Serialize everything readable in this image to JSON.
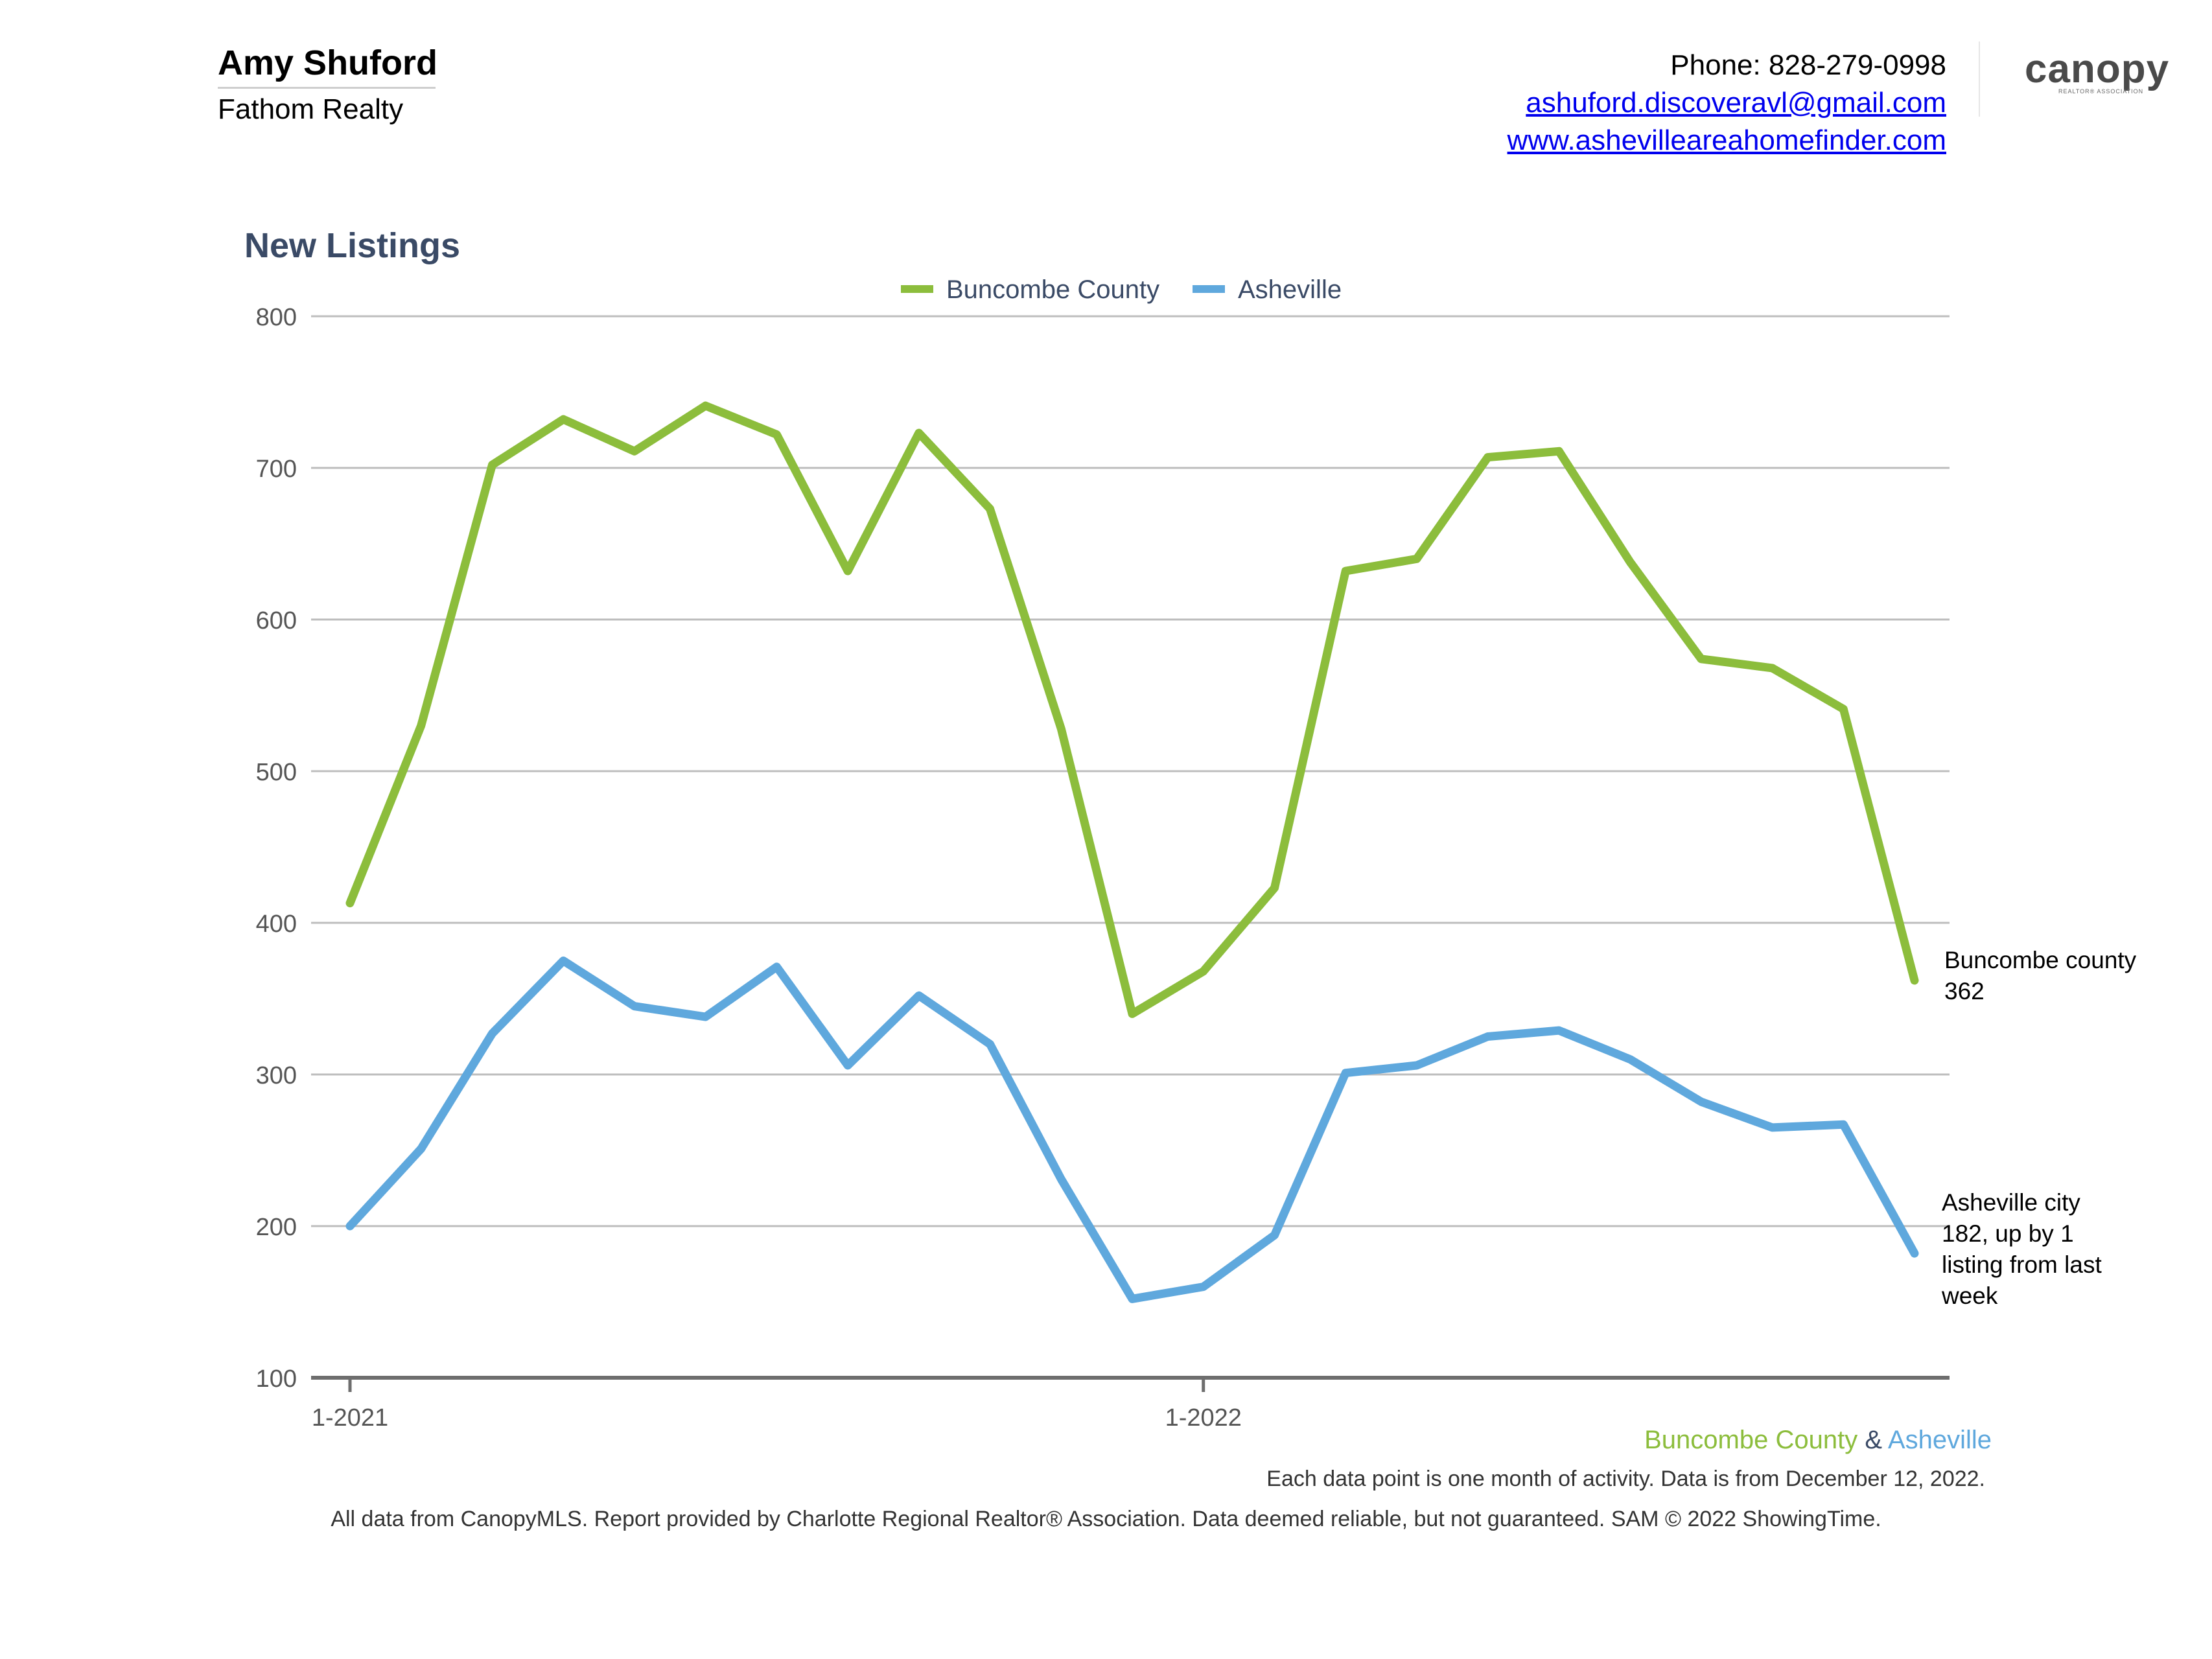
{
  "header": {
    "agent_name": "Amy Shuford",
    "company": "Fathom Realty",
    "phone": "Phone: 828-279-0998",
    "email": "ashuford.discoveravl@gmail.com",
    "website": "www.ashevilleareahomefinder.com",
    "logo_text": "canopy",
    "logo_subtext": "REALTOR® ASSOCIATION"
  },
  "chart_data": {
    "type": "line",
    "title": "New Listings",
    "x": [
      "1-2021",
      "2-2021",
      "3-2021",
      "4-2021",
      "5-2021",
      "6-2021",
      "7-2021",
      "8-2021",
      "9-2021",
      "10-2021",
      "11-2021",
      "12-2021",
      "1-2022",
      "2-2022",
      "3-2022",
      "4-2022",
      "5-2022",
      "6-2022",
      "7-2022",
      "8-2022",
      "9-2022",
      "10-2022",
      "11-2022"
    ],
    "x_tick_labels": [
      "1-2021",
      "1-2022"
    ],
    "y_ticks": [
      100,
      200,
      300,
      400,
      500,
      600,
      700,
      800
    ],
    "ylim": [
      100,
      800
    ],
    "grid": true,
    "legend_position": "top-center",
    "series": [
      {
        "name": "Buncombe County",
        "color": "#8cbd3c",
        "values": [
          413,
          530,
          702,
          732,
          711,
          741,
          722,
          632,
          723,
          673,
          528,
          340,
          368,
          423,
          632,
          640,
          707,
          711,
          638,
          574,
          568,
          541,
          362
        ]
      },
      {
        "name": "Asheville",
        "color": "#5fa8dd",
        "values": [
          200,
          251,
          327,
          375,
          345,
          338,
          371,
          306,
          352,
          320,
          231,
          152,
          160,
          194,
          301,
          306,
          325,
          329,
          310,
          282,
          265,
          267,
          182
        ]
      }
    ],
    "annotations": [
      {
        "series": "Buncombe County",
        "lines": [
          "Buncombe county",
          "362"
        ]
      },
      {
        "series": "Asheville",
        "lines": [
          "Asheville city",
          "182, up by 1",
          "listing from last",
          "week"
        ]
      }
    ]
  },
  "footer": {
    "series_a": "Buncombe County",
    "amp": " & ",
    "series_b": "Asheville",
    "note": "Each data point is one month of activity. Data is from December 12, 2022.",
    "disclaimer": "All data from CanopyMLS. Report provided by Charlotte Regional Realtor® Association. Data deemed reliable, but not guaranteed. SAM © 2022 ShowingTime."
  },
  "colors": {
    "title": "#3a4a66",
    "grid": "#bdbdbd",
    "axis": "#6e6e6e",
    "tick_text": "#555555",
    "legend_text": "#3a4a66",
    "link": "#0000ee"
  }
}
